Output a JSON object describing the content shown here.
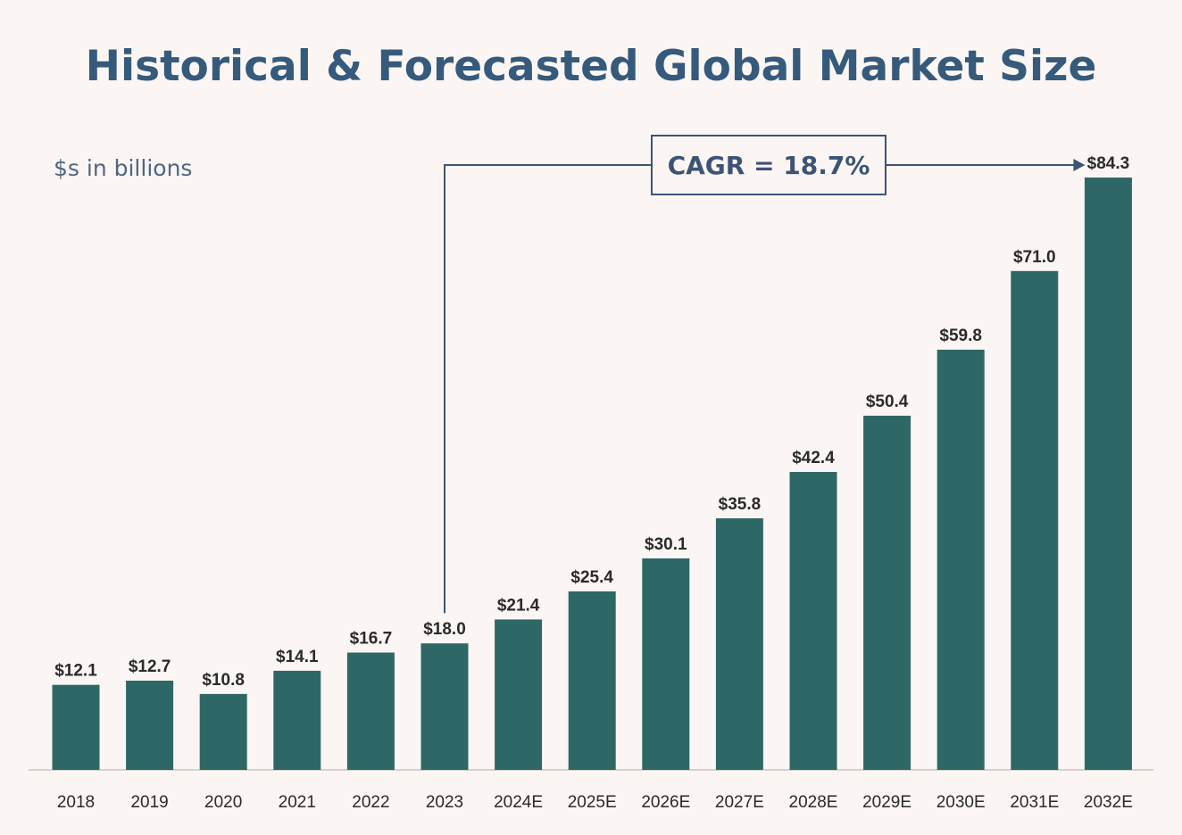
{
  "chart_data": {
    "type": "bar",
    "title": "Historical & Forecasted Global Market Size",
    "unit_note": "$s in billions",
    "categories": [
      "2018",
      "2019",
      "2020",
      "2021",
      "2022",
      "2023",
      "2024E",
      "2025E",
      "2026E",
      "2027E",
      "2028E",
      "2029E",
      "2030E",
      "2031E",
      "2032E"
    ],
    "values": [
      12.1,
      12.7,
      10.8,
      14.1,
      16.7,
      18.0,
      21.4,
      25.4,
      30.1,
      35.8,
      42.4,
      50.4,
      59.8,
      71.0,
      84.3
    ],
    "value_labels": [
      "$12.1",
      "$12.7",
      "$10.8",
      "$14.1",
      "$16.7",
      "$18.0",
      "$21.4",
      "$25.4",
      "$30.1",
      "$35.8",
      "$42.4",
      "$50.4",
      "$59.8",
      "$71.0",
      "$84.3"
    ],
    "annotation": {
      "text": "CAGR = 18.7%",
      "from_category": "2023",
      "to_category": "2032E"
    },
    "xlabel": "",
    "ylabel": "",
    "ylim": [
      0,
      84.3
    ],
    "grid": false,
    "legend": "none",
    "colors": {
      "bar": "#2e6866",
      "title": "#355a7c",
      "unit_note": "#4f6681",
      "annotation": "#3d5476",
      "labels": "#2a2a2a",
      "baseline": "#d6d0cc",
      "background": "#fbf6f3"
    }
  }
}
